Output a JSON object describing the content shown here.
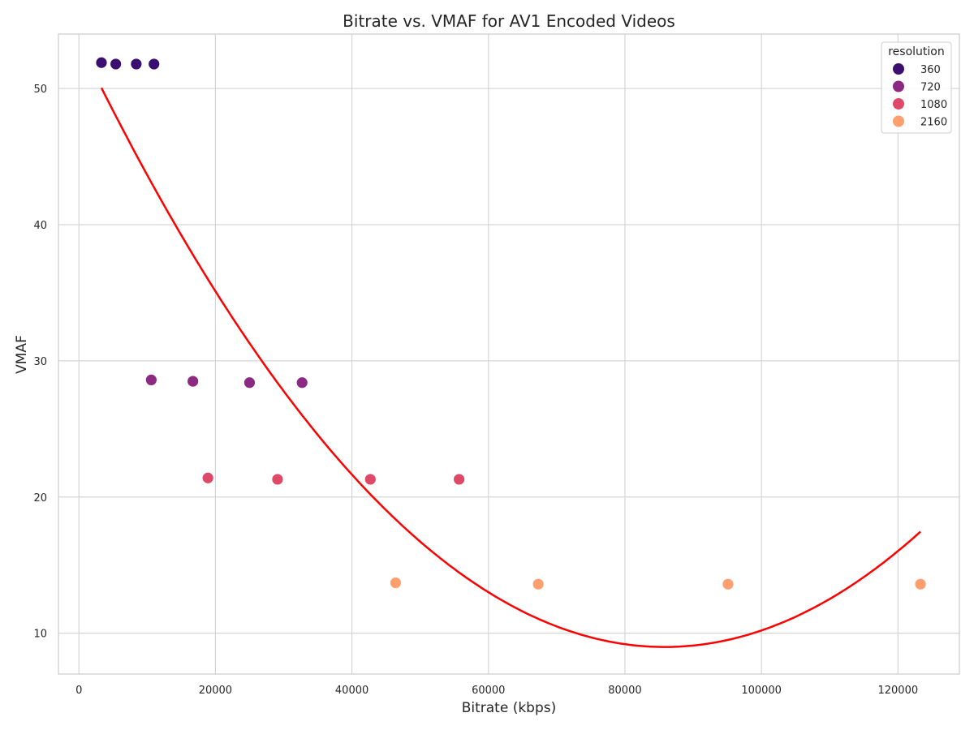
{
  "chart_data": {
    "type": "scatter",
    "title": "Bitrate vs. VMAF for AV1 Encoded Videos",
    "xlabel": "Bitrate (kbps)",
    "ylabel": "VMAF",
    "xlim": [
      -3000,
      129000
    ],
    "ylim": [
      7,
      54
    ],
    "xticks": [
      0,
      20000,
      40000,
      60000,
      80000,
      100000,
      120000
    ],
    "yticks": [
      10,
      20,
      30,
      40,
      50
    ],
    "grid": true,
    "legend": {
      "title": "resolution",
      "position": "top-right",
      "entries": [
        {
          "label": "360",
          "color": "#3b0f70"
        },
        {
          "label": "720",
          "color": "#8c2981"
        },
        {
          "label": "1080",
          "color": "#de4968"
        },
        {
          "label": "2160",
          "color": "#fe9f6d"
        }
      ]
    },
    "series": [
      {
        "name": "360",
        "color": "#3b0f70",
        "points": [
          [
            3300,
            51.9
          ],
          [
            5400,
            51.8
          ],
          [
            8400,
            51.8
          ],
          [
            11000,
            51.8
          ]
        ]
      },
      {
        "name": "720",
        "color": "#8c2981",
        "points": [
          [
            10600,
            28.6
          ],
          [
            16700,
            28.5
          ],
          [
            25000,
            28.4
          ],
          [
            32700,
            28.4
          ]
        ]
      },
      {
        "name": "1080",
        "color": "#de4968",
        "points": [
          [
            18900,
            21.4
          ],
          [
            29100,
            21.3
          ],
          [
            42700,
            21.3
          ],
          [
            55700,
            21.3
          ]
        ]
      },
      {
        "name": "2160",
        "color": "#fe9f6d",
        "points": [
          [
            46400,
            13.7
          ],
          [
            67300,
            13.6
          ],
          [
            95100,
            13.6
          ],
          [
            123300,
            13.6
          ]
        ]
      }
    ],
    "fit_line": {
      "type": "quadratic",
      "color": "#ff0000",
      "x_range": [
        3300,
        123300
      ],
      "coefficients": [
        53.4,
        -0.001035,
        6.03e-09
      ]
    }
  }
}
